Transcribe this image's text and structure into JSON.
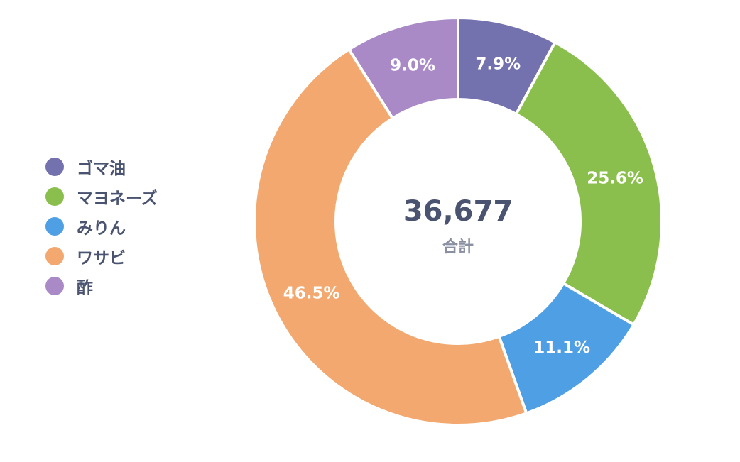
{
  "chart_data": {
    "type": "pie",
    "variant": "donut",
    "start_angle": "top",
    "direction": "clockwise",
    "legend_position": "left",
    "categories": [
      "ゴマ油",
      "マヨネーズ",
      "みりん",
      "ワサビ",
      "酢"
    ],
    "values": [
      7.9,
      25.6,
      11.1,
      46.5,
      9.0
    ],
    "labels": [
      "7.9%",
      "25.6%",
      "11.1%",
      "46.5%",
      "9.0%"
    ],
    "colors": [
      "#7471af",
      "#8bbf4d",
      "#4f9fe4",
      "#f2a86f",
      "#a98ac6"
    ],
    "center_total": "36,677",
    "center_label": "合計"
  }
}
